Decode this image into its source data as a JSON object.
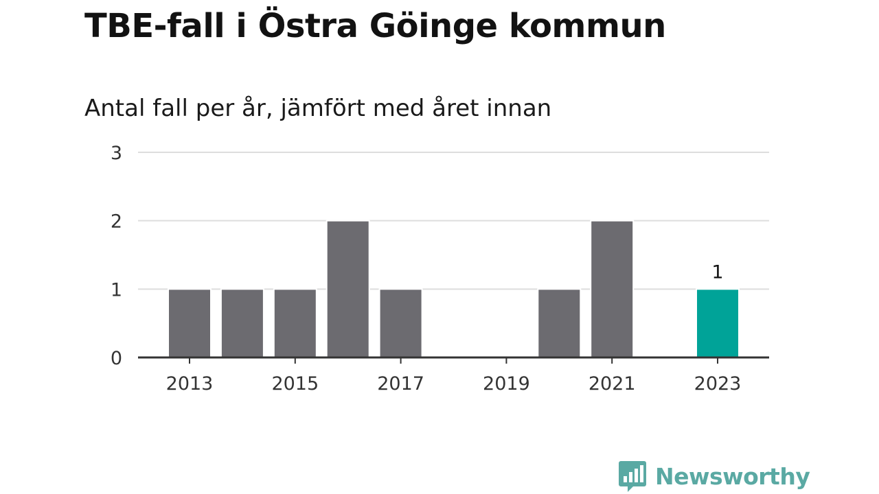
{
  "title": "TBE-fall i Östra Göinge kommun",
  "subtitle": "Antal fall per år, jämfört med året innan",
  "logo": {
    "text": "Newsworthy",
    "icon": "bar-chart-speech-bubble-icon",
    "color": "#5aa9a3"
  },
  "chart_data": {
    "type": "bar",
    "categories": [
      "2013",
      "2014",
      "2015",
      "2016",
      "2017",
      "2018",
      "2019",
      "2020",
      "2021",
      "2022",
      "2023"
    ],
    "values": [
      1,
      1,
      1,
      2,
      1,
      0,
      0,
      1,
      2,
      0,
      1
    ],
    "x_tick_labels": [
      "2013",
      "2015",
      "2017",
      "2019",
      "2021",
      "2023"
    ],
    "y_ticks": [
      "0",
      "1",
      "2",
      "3"
    ],
    "ylim": [
      0,
      3
    ],
    "grid": true,
    "highlight_index": 10,
    "highlight_label": "1",
    "colors": {
      "bar": "#6c6b70",
      "highlight": "#00a398",
      "grid": "#dddddd",
      "axis": "#333333"
    }
  }
}
